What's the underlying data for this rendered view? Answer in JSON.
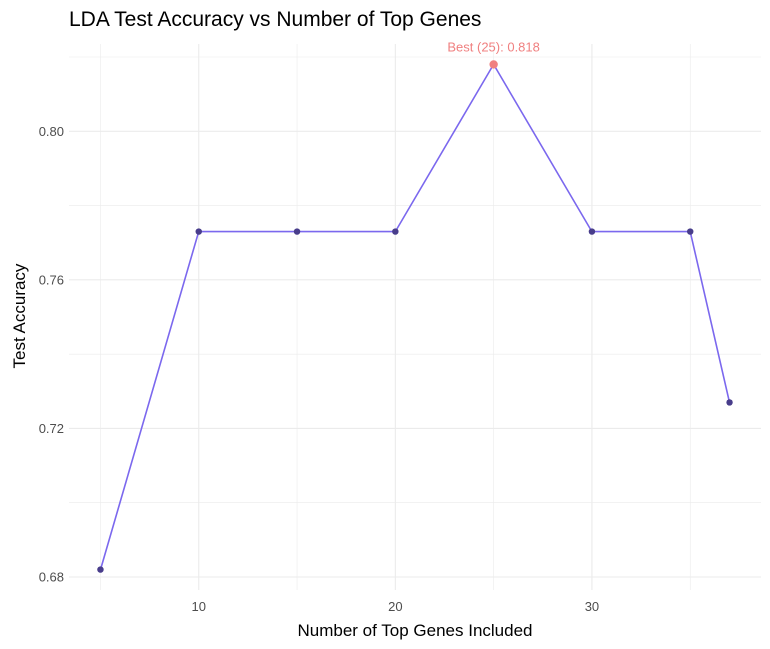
{
  "chart_data": {
    "type": "line",
    "title": "LDA Test Accuracy vs Number of Top Genes",
    "xlabel": "Number of Top Genes Included",
    "ylabel": "Test Accuracy",
    "x": [
      5,
      10,
      15,
      20,
      25,
      30,
      35,
      37
    ],
    "series": [
      {
        "values": [
          0.682,
          0.773,
          0.773,
          0.773,
          0.818,
          0.773,
          0.773,
          0.727
        ]
      }
    ],
    "xlim": [
      3.4,
      38.6
    ],
    "ylim": [
      0.6765,
      0.8235
    ],
    "xticks": [
      10,
      20,
      30
    ],
    "yticks": [
      0.68,
      0.72,
      0.76,
      0.8
    ],
    "ytick_labels": [
      "0.68",
      "0.72",
      "0.76",
      "0.80"
    ],
    "grid": true,
    "legend": "none",
    "highlight": {
      "x": 25,
      "y": 0.818,
      "label": "Best (25): 0.818"
    },
    "colors": {
      "line": "#7b68ee",
      "point": "#483d8b",
      "highlight": "#f08080",
      "grid": "#ebebeb"
    }
  }
}
